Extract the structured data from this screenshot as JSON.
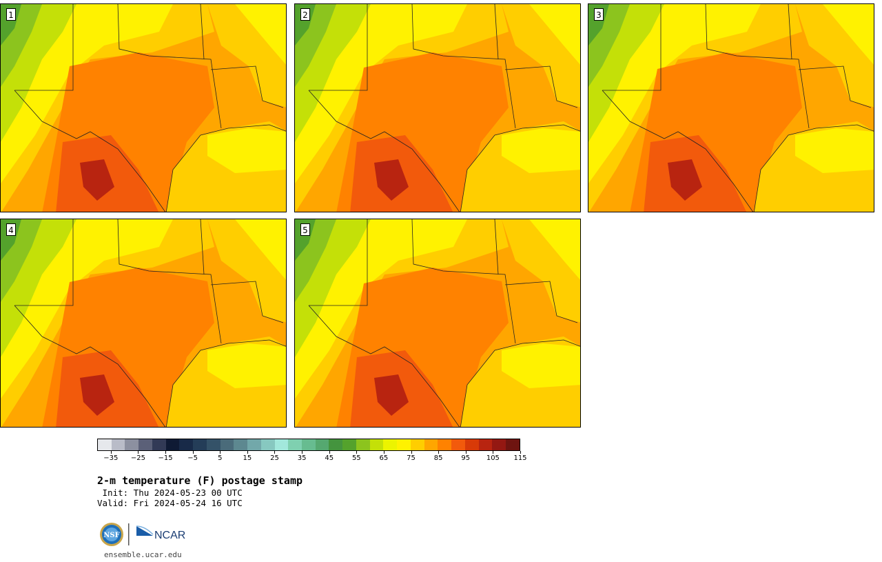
{
  "panels": [
    {
      "label": "1"
    },
    {
      "label": "2"
    },
    {
      "label": "3"
    },
    {
      "label": "4"
    },
    {
      "label": "5"
    }
  ],
  "colorbar": {
    "colors": [
      "#e6e8ec",
      "#b9bcc8",
      "#8c90a0",
      "#5b6078",
      "#323a56",
      "#0f1a34",
      "#182a48",
      "#243d58",
      "#345268",
      "#4a6b7a",
      "#5d8890",
      "#72a8aa",
      "#87c8c0",
      "#a2e8dc",
      "#7fd0b0",
      "#67bc90",
      "#55a870",
      "#44943e",
      "#54a22c",
      "#8cc41e",
      "#c4e008",
      "#ecf400",
      "#fff200",
      "#ffce00",
      "#ffa600",
      "#ff8200",
      "#f25a0c",
      "#d83a08",
      "#b82410",
      "#941812",
      "#6e1410"
    ],
    "tick_labels": [
      "−35",
      "−25",
      "−15",
      "−5",
      "5",
      "15",
      "25",
      "35",
      "45",
      "55",
      "65",
      "75",
      "85",
      "95",
      "105",
      "115"
    ],
    "tick_values": [
      -35,
      -25,
      -15,
      -5,
      5,
      15,
      25,
      35,
      45,
      55,
      65,
      75,
      85,
      95,
      105,
      115
    ],
    "min": -40,
    "max": 115
  },
  "title": "2-m temperature (F) postage stamp",
  "init_line": " Init: Thu 2024-05-23 00 UTC",
  "valid_line": "Valid: Fri 2024-05-24 16 UTC",
  "logos": {
    "nsf": "NSF",
    "ncar": "NCAR"
  },
  "website": "ensemble.ucar.edu"
}
